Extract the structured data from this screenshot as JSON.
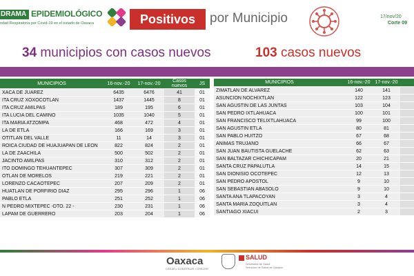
{
  "header": {
    "brand_box": "DRAMA",
    "brand_title": "EPIDEMIOLÓGICO",
    "brand_subtitle": "ndad Respiratoria por Covid-19 en el estado de Oaxaca",
    "positivos": "Positivos",
    "por_municipio": "por Municipio",
    "date": "17/nov/20",
    "corte": "Corte 09"
  },
  "summary": {
    "left_number": "34",
    "left_text": "municipios con casos nuevos",
    "right_number": "103",
    "right_text": "casos nuevos"
  },
  "columns": [
    "MUNICIPIOS",
    "16-nov.-20",
    "17-nov.-20",
    "Casos nuevos",
    "JS"
  ],
  "columns_right": [
    "MUNICIPIOS",
    "16-nov.-20",
    "17-nov.-20"
  ],
  "left_rows": [
    {
      "name": "XACA DE JUAREZ",
      "d16": "6435",
      "d17": "6476",
      "nuevos": "41",
      "js": "01"
    },
    {
      "name": "ITA CRUZ XOXOCOTLAN",
      "d16": "1437",
      "d17": "1445",
      "nuevos": "8",
      "js": "01"
    },
    {
      "name": "ITA CRUZ AMILPAS",
      "d16": "189",
      "d17": "195",
      "nuevos": "6",
      "js": "01"
    },
    {
      "name": "ITA LUCIA DEL CAMINO",
      "d16": "1035",
      "d17": "1040",
      "nuevos": "5",
      "js": "01"
    },
    {
      "name": "ITA MARIA ATZOMPA",
      "d16": "468",
      "d17": "472",
      "nuevos": "4",
      "js": "01"
    },
    {
      "name": "LA DE ETLA",
      "d16": "166",
      "d17": "169",
      "nuevos": "3",
      "js": "01"
    },
    {
      "name": "OTITLAN DEL VALLE",
      "d16": "11",
      "d17": "14",
      "nuevos": "3",
      "js": "01"
    },
    {
      "name": "ROICA CIUDAD DE HUAJUAPAN DE LEON",
      "d16": "822",
      "d17": "824",
      "nuevos": "2",
      "js": "01"
    },
    {
      "name": "LA DE ZAACHILA",
      "d16": "500",
      "d17": "502",
      "nuevos": "2",
      "js": "01"
    },
    {
      "name": "JACINTO AMILPAS",
      "d16": "310",
      "d17": "312",
      "nuevos": "2",
      "js": "01"
    },
    {
      "name": "ITO DOMINGO TEHUANTEPEC",
      "d16": "307",
      "d17": "309",
      "nuevos": "2",
      "js": "01"
    },
    {
      "name": "OTLAN DE MORELOS",
      "d16": "219",
      "d17": "221",
      "nuevos": "2",
      "js": "01"
    },
    {
      "name": "LORENZO CACAOTEPEC",
      "d16": "207",
      "d17": "209",
      "nuevos": "2",
      "js": "01"
    },
    {
      "name": "HUATLAN DE PORFIRIO DIAZ",
      "d16": "295",
      "d17": "296",
      "nuevos": "1",
      "js": "06"
    },
    {
      "name": "PABLO ETLA",
      "d16": "251",
      "d17": "252",
      "nuevos": "1",
      "js": "06"
    },
    {
      "name": "N PEDRO MIXTEPEC -DTO. 22 -",
      "d16": "230",
      "d17": "231",
      "nuevos": "1",
      "js": "06"
    },
    {
      "name": "LAPAM DE GUERRERO",
      "d16": "203",
      "d17": "204",
      "nuevos": "1",
      "js": "06"
    }
  ],
  "right_rows": [
    {
      "name": "ZIMATLAN DE ALVAREZ",
      "d16": "140",
      "d17": "141"
    },
    {
      "name": "ASUNCION NOCHIXTLAN",
      "d16": "122",
      "d17": "123"
    },
    {
      "name": "SAN AGUSTIN DE LAS JUNTAS",
      "d16": "103",
      "d17": "104"
    },
    {
      "name": "SAN PEDRO IXTLAHUACA",
      "d16": "100",
      "d17": "101"
    },
    {
      "name": "SAN FRANCISCO TELIXTLAHUACA",
      "d16": "99",
      "d17": "100"
    },
    {
      "name": "SAN AGUSTIN ETLA",
      "d16": "80",
      "d17": "81"
    },
    {
      "name": "SAN PABLO HUITZO",
      "d16": "67",
      "d17": "68"
    },
    {
      "name": "ANIMAS TRUJANO",
      "d16": "66",
      "d17": "67"
    },
    {
      "name": "SAN JUAN BAUTISTA GUELACHE",
      "d16": "62",
      "d17": "63"
    },
    {
      "name": "SAN BALTAZAR CHICHICAPAM",
      "d16": "20",
      "d17": "21"
    },
    {
      "name": "SANTA CRUZ PAPALUTLA",
      "d16": "14",
      "d17": "15"
    },
    {
      "name": "SAN DIONISIO OCOTEPEC",
      "d16": "12",
      "d17": "13"
    },
    {
      "name": "SAN PEDRO APOSTOL",
      "d16": "9",
      "d17": "10"
    },
    {
      "name": "SAN SEBASTIAN ABASOLO",
      "d16": "9",
      "d17": "10"
    },
    {
      "name": "SANTA ANA TLAPACOYAN",
      "d16": "3",
      "d17": "4"
    },
    {
      "name": "SANTA MARIA ZOQUITLAN",
      "d16": "3",
      "d17": "4"
    },
    {
      "name": "SANTIAGO XIACUI",
      "d16": "2",
      "d17": "3"
    }
  ],
  "footer": {
    "oaxaca": "Oaxaca",
    "oaxaca_sub": "CREAR • CONSTRUIR • CRECER",
    "salud": "SALUD",
    "salud_sub_1": "Secretaría de Salud",
    "salud_sub_2": "Servicios de Salud de Oaxaca"
  },
  "colors": {
    "green": "#2f7e3b",
    "red": "#c9302c",
    "purple": "#8e3e8f"
  },
  "icons": [
    "covid-cross-logo-icon",
    "coronavirus-icon",
    "state-seal-icon",
    "salud-logo-icon"
  ]
}
